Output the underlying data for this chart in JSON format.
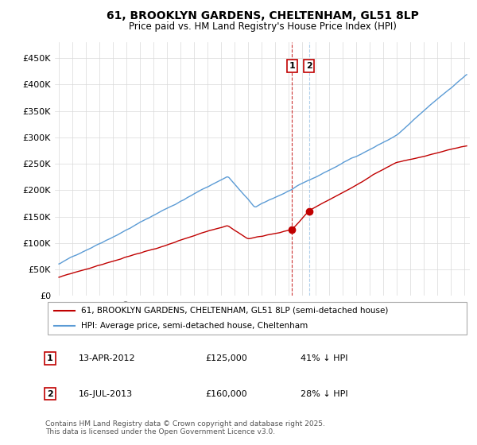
{
  "title1": "61, BROOKLYN GARDENS, CHELTENHAM, GL51 8LP",
  "title2": "Price paid vs. HM Land Registry's House Price Index (HPI)",
  "legend_line1": "61, BROOKLYN GARDENS, CHELTENHAM, GL51 8LP (semi-detached house)",
  "legend_line2": "HPI: Average price, semi-detached house, Cheltenham",
  "sale1_date": "13-APR-2012",
  "sale1_price": 125000,
  "sale1_label": "41% ↓ HPI",
  "sale2_date": "16-JUL-2013",
  "sale2_price": 160000,
  "sale2_label": "28% ↓ HPI",
  "footer": "Contains HM Land Registry data © Crown copyright and database right 2025.\nThis data is licensed under the Open Government Licence v3.0.",
  "hpi_color": "#5b9bd5",
  "property_color": "#c00000",
  "background_color": "#ffffff",
  "grid_color": "#d9d9d9",
  "sale1_vline_color": "#c00000",
  "sale2_vline_color": "#9dc3e6",
  "ylim": [
    0,
    480000
  ],
  "yticks": [
    0,
    50000,
    100000,
    150000,
    200000,
    250000,
    300000,
    350000,
    400000,
    450000
  ],
  "xlim_left": 1994.7,
  "xlim_right": 2025.4,
  "sale1_x": 2012.25,
  "sale2_x": 2013.5
}
